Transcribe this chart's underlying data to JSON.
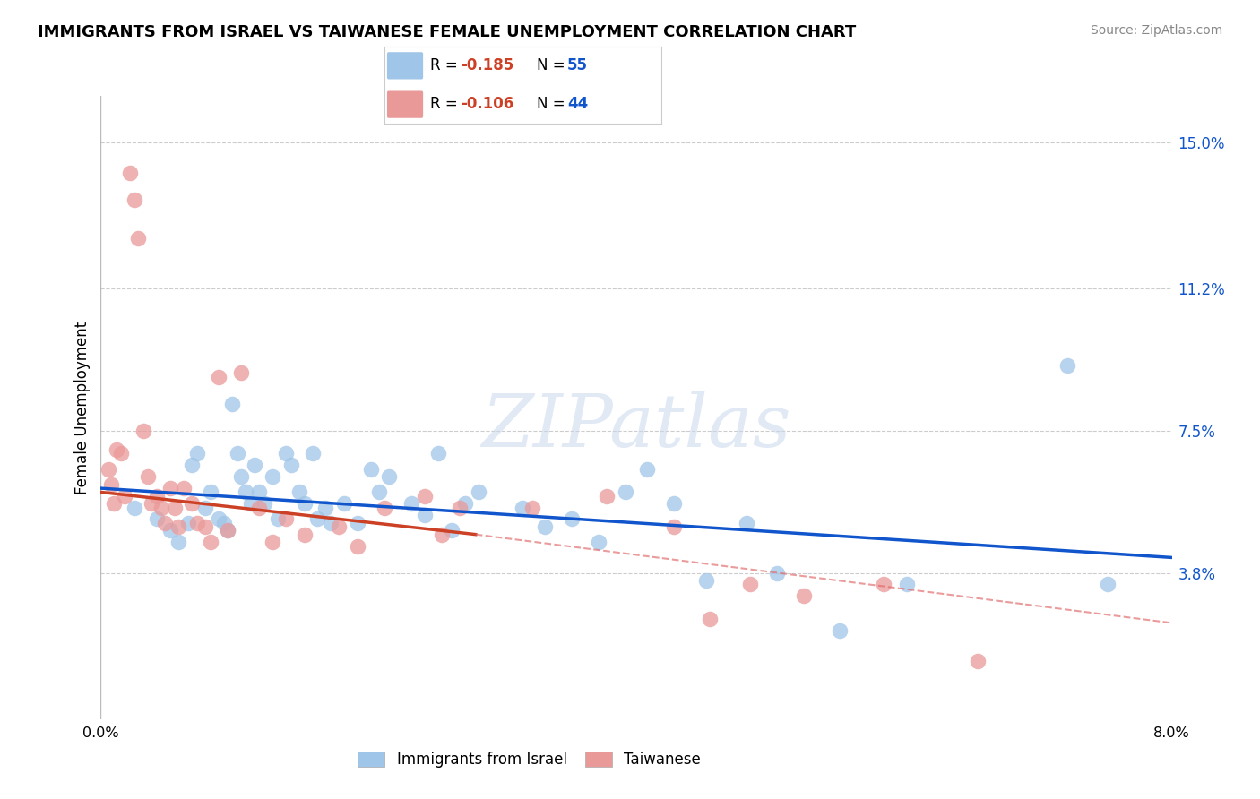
{
  "title": "IMMIGRANTS FROM ISRAEL VS TAIWANESE FEMALE UNEMPLOYMENT CORRELATION CHART",
  "source": "Source: ZipAtlas.com",
  "ylabel": "Female Unemployment",
  "y_tick_values": [
    3.8,
    7.5,
    11.2,
    15.0
  ],
  "x_range": [
    0.0,
    8.0
  ],
  "y_range": [
    0.0,
    16.2
  ],
  "blue_color": "#9fc5e8",
  "pink_color": "#ea9999",
  "blue_line_color": "#1155cc",
  "pink_line_color": "#cc4125",
  "pink_dash_color": "#e06666",
  "watermark": "ZIPatlas",
  "blue_R": "-0.185",
  "blue_N": "55",
  "pink_R": "-0.106",
  "pink_N": "44",
  "blue_scatter_x": [
    0.25,
    0.42,
    0.52,
    0.58,
    0.65,
    0.68,
    0.72,
    0.78,
    0.82,
    0.88,
    0.92,
    0.95,
    0.98,
    1.02,
    1.05,
    1.08,
    1.12,
    1.15,
    1.18,
    1.22,
    1.28,
    1.32,
    1.38,
    1.42,
    1.48,
    1.52,
    1.58,
    1.62,
    1.68,
    1.72,
    1.82,
    1.92,
    2.02,
    2.08,
    2.15,
    2.32,
    2.42,
    2.52,
    2.62,
    2.72,
    2.82,
    3.15,
    3.32,
    3.52,
    3.72,
    3.92,
    4.08,
    4.28,
    4.52,
    4.82,
    5.05,
    5.52,
    6.02,
    7.22,
    7.52
  ],
  "blue_scatter_y": [
    5.5,
    5.2,
    4.9,
    4.6,
    5.1,
    6.6,
    6.9,
    5.5,
    5.9,
    5.2,
    5.1,
    4.9,
    8.2,
    6.9,
    6.3,
    5.9,
    5.6,
    6.6,
    5.9,
    5.6,
    6.3,
    5.2,
    6.9,
    6.6,
    5.9,
    5.6,
    6.9,
    5.2,
    5.5,
    5.1,
    5.6,
    5.1,
    6.5,
    5.9,
    6.3,
    5.6,
    5.3,
    6.9,
    4.9,
    5.6,
    5.9,
    5.5,
    5.0,
    5.2,
    4.6,
    5.9,
    6.5,
    5.6,
    3.6,
    5.1,
    3.8,
    2.3,
    3.5,
    9.2,
    3.5
  ],
  "pink_scatter_x": [
    0.06,
    0.08,
    0.1,
    0.12,
    0.15,
    0.18,
    0.22,
    0.25,
    0.28,
    0.32,
    0.35,
    0.38,
    0.42,
    0.45,
    0.48,
    0.52,
    0.55,
    0.58,
    0.62,
    0.68,
    0.72,
    0.78,
    0.82,
    0.88,
    0.95,
    1.05,
    1.18,
    1.28,
    1.38,
    1.52,
    1.78,
    1.92,
    2.12,
    2.42,
    2.55,
    2.68,
    3.22,
    3.78,
    4.28,
    4.55,
    4.85,
    5.25,
    5.85,
    6.55
  ],
  "pink_scatter_y": [
    6.5,
    6.1,
    5.6,
    7.0,
    6.9,
    5.8,
    14.2,
    13.5,
    12.5,
    7.5,
    6.3,
    5.6,
    5.8,
    5.5,
    5.1,
    6.0,
    5.5,
    5.0,
    6.0,
    5.6,
    5.1,
    5.0,
    4.6,
    8.9,
    4.9,
    9.0,
    5.5,
    4.6,
    5.2,
    4.8,
    5.0,
    4.5,
    5.5,
    5.8,
    4.8,
    5.5,
    5.5,
    5.8,
    5.0,
    2.6,
    3.5,
    3.2,
    3.5,
    1.5
  ],
  "blue_line_x0": 0.0,
  "blue_line_x1": 8.0,
  "blue_line_y0": 6.0,
  "blue_line_y1": 4.2,
  "pink_solid_x0": 0.0,
  "pink_solid_x1": 2.8,
  "pink_solid_y0": 5.9,
  "pink_solid_y1": 4.8,
  "pink_dash_x0": 2.8,
  "pink_dash_x1": 8.0,
  "pink_dash_y0": 4.8,
  "pink_dash_y1": 2.5
}
